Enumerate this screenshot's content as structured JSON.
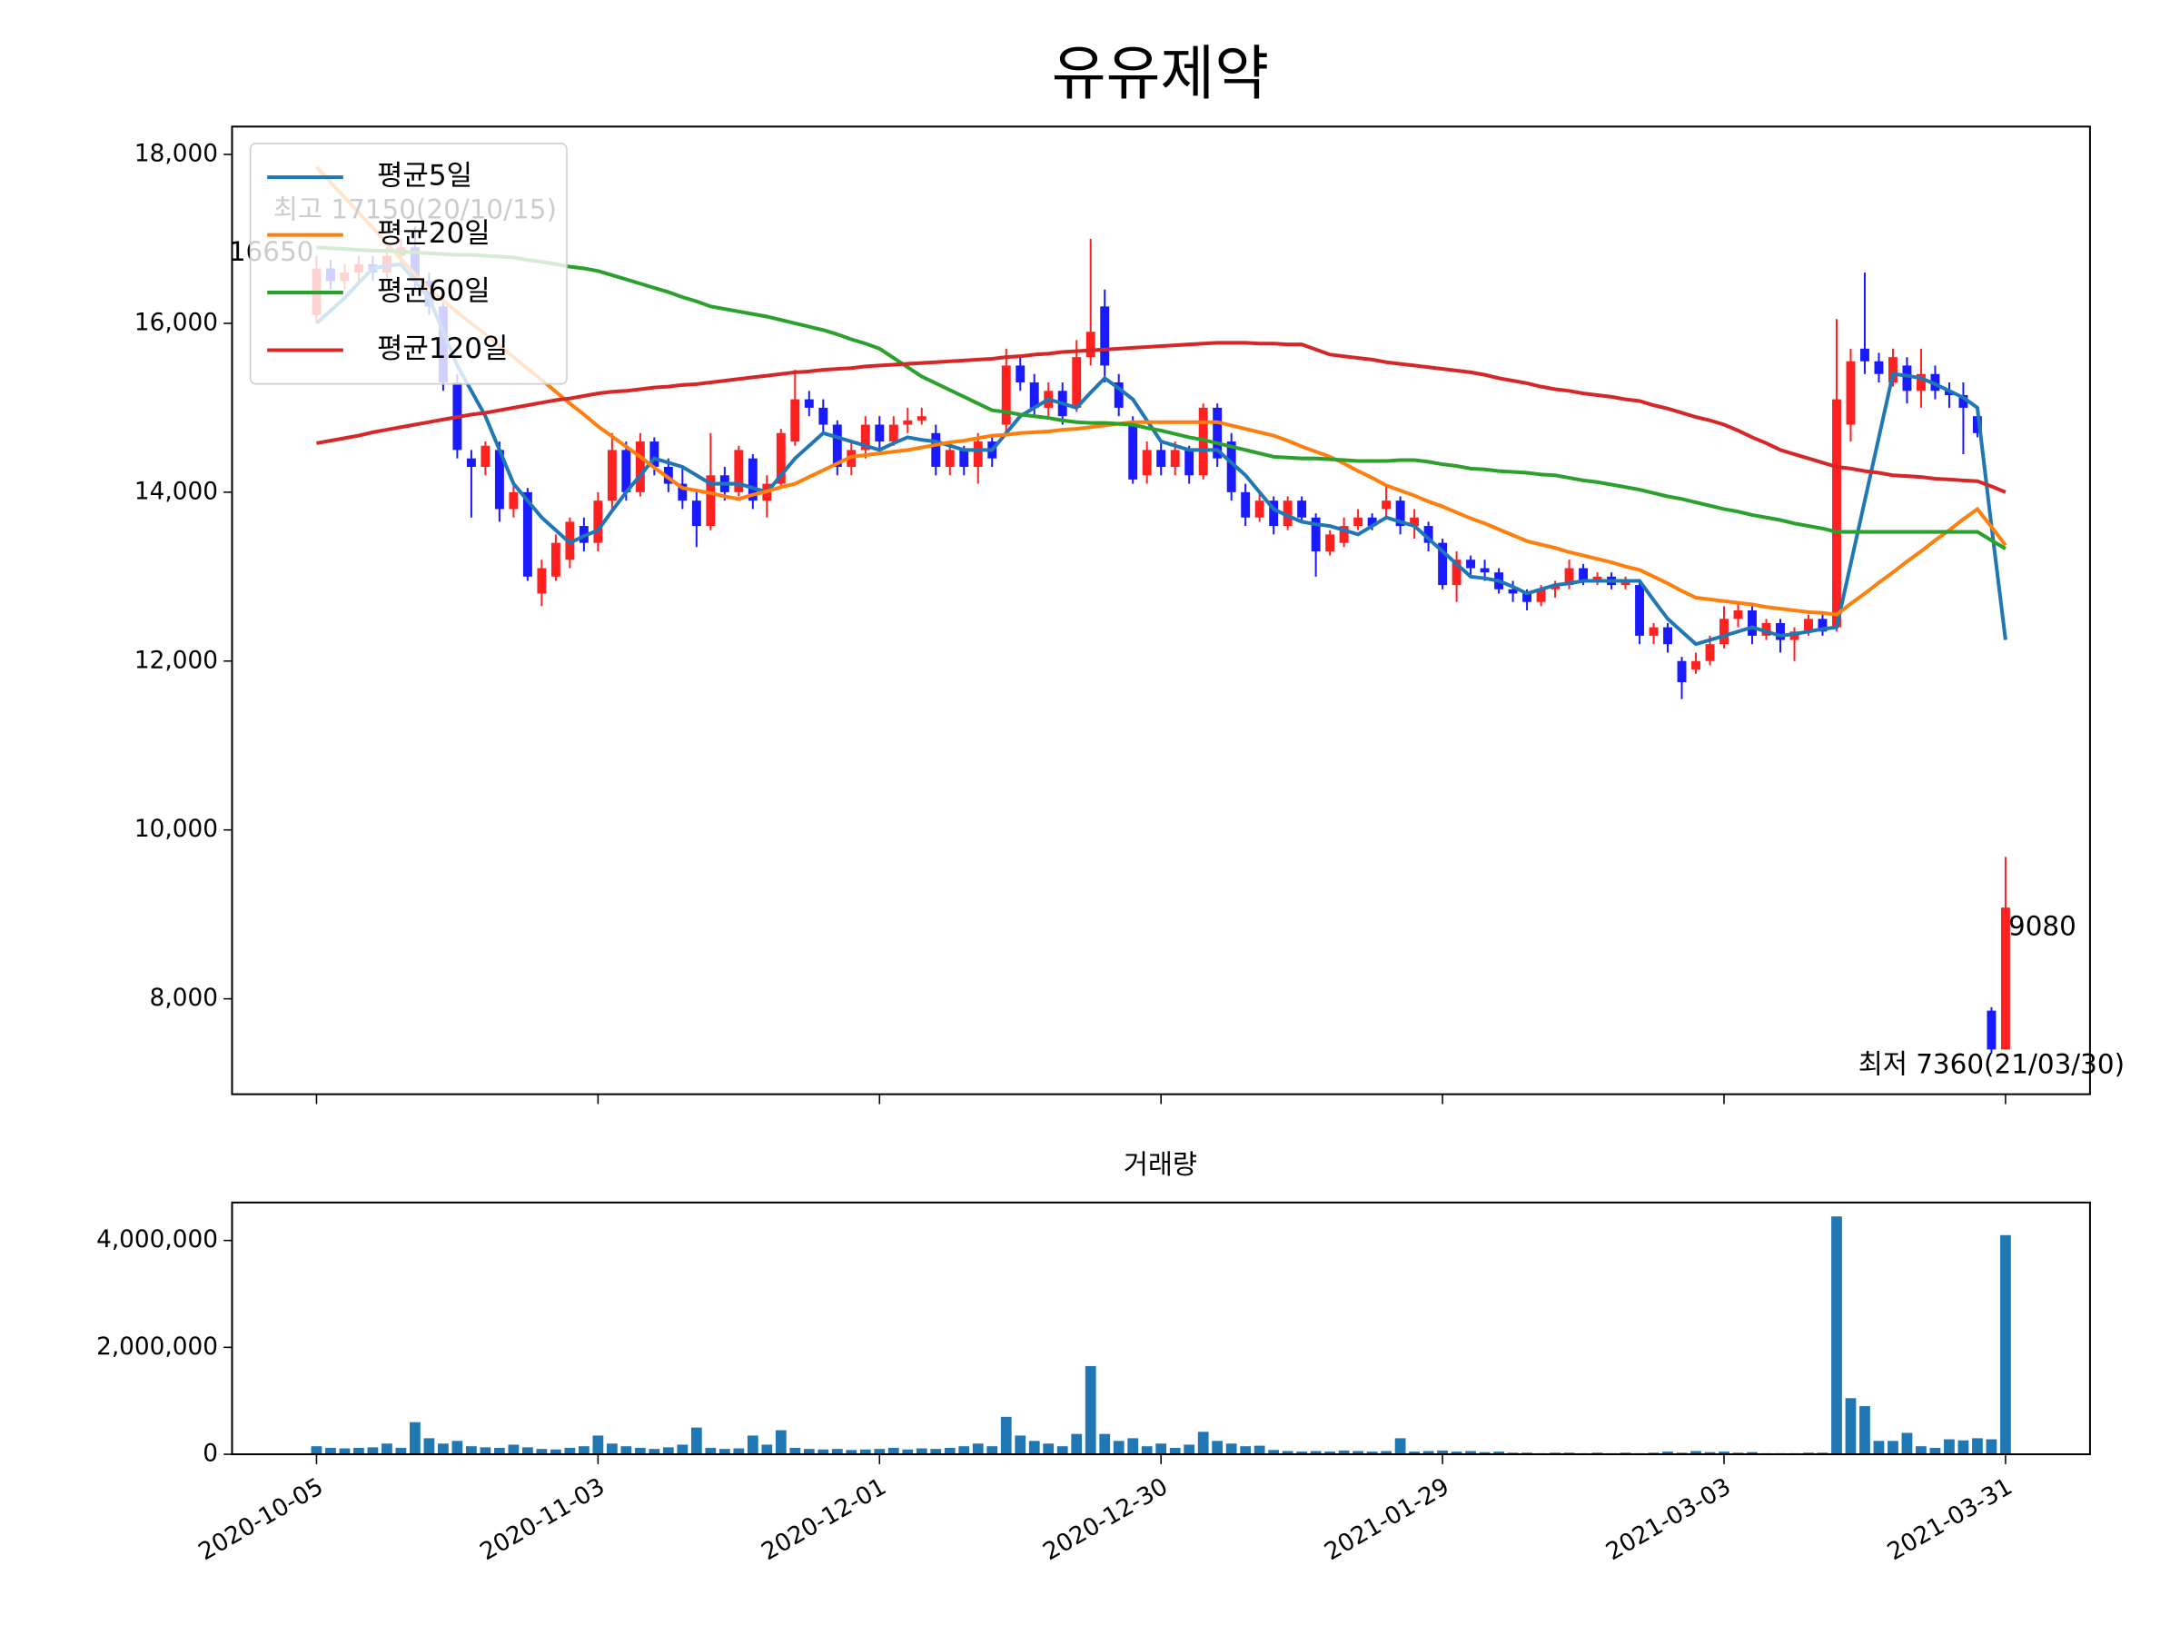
{
  "chart_data": {
    "type": "candlestick",
    "title": "유유제약",
    "categories": [
      "2020-10-05",
      null,
      null,
      null,
      null,
      null,
      null,
      null,
      null,
      null,
      null,
      null,
      null,
      null,
      null,
      null,
      null,
      null,
      null,
      null,
      "2020-11-03",
      null,
      null,
      null,
      null,
      null,
      null,
      null,
      null,
      null,
      null,
      null,
      null,
      null,
      null,
      null,
      null,
      null,
      null,
      null,
      "2020-12-01",
      null,
      null,
      null,
      null,
      null,
      null,
      null,
      null,
      null,
      null,
      null,
      null,
      null,
      null,
      null,
      null,
      null,
      null,
      null,
      "2020-12-30",
      null,
      null,
      null,
      null,
      null,
      null,
      null,
      null,
      null,
      null,
      null,
      null,
      null,
      null,
      null,
      null,
      null,
      null,
      null,
      "2021-01-29",
      null,
      null,
      null,
      null,
      null,
      null,
      null,
      null,
      null,
      null,
      null,
      null,
      null,
      null,
      null,
      null,
      null,
      null,
      null,
      "2021-03-03",
      null,
      null,
      null,
      null,
      null,
      null,
      null,
      null,
      null,
      null,
      null,
      null,
      null,
      null,
      null,
      null,
      null,
      null,
      null,
      "2021-03-31"
    ],
    "open": [
      16100,
      16650,
      16500,
      16600,
      16700,
      16600,
      16800,
      16900,
      16500,
      16200,
      15300,
      14400,
      14300,
      14500,
      13800,
      14000,
      12800,
      13000,
      13200,
      13600,
      13400,
      13900,
      14500,
      14000,
      14600,
      14300,
      14100,
      13900,
      13600,
      14200,
      14000,
      14400,
      13900,
      14100,
      14600,
      15100,
      15000,
      14800,
      14300,
      14500,
      14800,
      14600,
      14800,
      14850,
      14700,
      14300,
      14500,
      14300,
      14600,
      14800,
      15500,
      15300,
      15000,
      15200,
      15000,
      15600,
      16200,
      15300,
      14800,
      14200,
      14500,
      14300,
      14500,
      14200,
      15000,
      14600,
      14000,
      13700,
      13900,
      13600,
      13900,
      13700,
      13300,
      13400,
      13600,
      13700,
      13800,
      13900,
      13600,
      13600,
      13400,
      12900,
      13200,
      13100,
      13050,
      12850,
      12800,
      12700,
      12850,
      12900,
      13100,
      12950,
      13000,
      12900,
      12900,
      12300,
      12400,
      12000,
      11900,
      12000,
      12200,
      12500,
      12600,
      12300,
      12450,
      12250,
      12350,
      12500,
      12400,
      14800,
      15700,
      15550,
      15300,
      15500,
      15200,
      15400,
      15200,
      15150,
      14900,
      7860,
      7400
    ],
    "high": [
      16800,
      16750,
      16700,
      16800,
      16800,
      16900,
      17000,
      17150,
      16600,
      16300,
      15400,
      14500,
      14600,
      14600,
      14100,
      14050,
      13200,
      13500,
      13700,
      13700,
      14000,
      14700,
      14600,
      14700,
      14650,
      14400,
      14300,
      14000,
      14700,
      14300,
      14550,
      14450,
      14200,
      14750,
      15450,
      15200,
      15100,
      14850,
      14600,
      14900,
      14900,
      14900,
      15000,
      15000,
      14800,
      14600,
      14550,
      14700,
      14650,
      15700,
      15600,
      15400,
      15300,
      15300,
      15800,
      17000,
      16400,
      15400,
      14900,
      14600,
      14600,
      14600,
      14550,
      15050,
      15050,
      14700,
      14100,
      14000,
      13950,
      13950,
      13950,
      13750,
      13550,
      13700,
      13800,
      13750,
      14100,
      13950,
      13800,
      13650,
      13450,
      13300,
      13250,
      13200,
      13100,
      12950,
      12850,
      12900,
      12950,
      13200,
      13150,
      13050,
      13050,
      13000,
      12950,
      12450,
      12450,
      12050,
      12100,
      12300,
      12650,
      12700,
      12650,
      12500,
      12500,
      12400,
      12550,
      12550,
      16050,
      15700,
      16600,
      15650,
      15700,
      15600,
      15700,
      15500,
      15300,
      15300,
      14950,
      7900,
      9680
    ],
    "low": [
      16000,
      16400,
      16400,
      16500,
      16500,
      16500,
      16700,
      16400,
      16100,
      15200,
      14400,
      13700,
      14200,
      13650,
      13700,
      12950,
      12650,
      12950,
      13100,
      13300,
      13300,
      13800,
      13900,
      13950,
      14200,
      14000,
      13800,
      13350,
      13550,
      13900,
      13950,
      13800,
      13700,
      14050,
      14550,
      14900,
      14700,
      14200,
      14200,
      14400,
      14500,
      14550,
      14700,
      14800,
      14200,
      14200,
      14200,
      14100,
      14300,
      14700,
      15200,
      14900,
      14900,
      14800,
      14950,
      15500,
      15300,
      14900,
      14100,
      14100,
      14200,
      14200,
      14100,
      14150,
      14300,
      13900,
      13600,
      13650,
      13500,
      13550,
      13650,
      13000,
      13250,
      13350,
      13550,
      13550,
      13700,
      13500,
      13450,
      13300,
      12850,
      12700,
      13000,
      12950,
      12800,
      12700,
      12600,
      12650,
      12750,
      12850,
      12900,
      12900,
      12850,
      12850,
      12200,
      12200,
      12100,
      11550,
      11850,
      11950,
      12150,
      12400,
      12200,
      12250,
      12100,
      12000,
      12300,
      12300,
      12350,
      14600,
      15400,
      15300,
      15250,
      15050,
      15000,
      15100,
      15000,
      14450,
      14650,
      7360,
      7400
    ],
    "close": [
      16650,
      16500,
      16600,
      16700,
      16600,
      16800,
      16900,
      16500,
      16200,
      15300,
      14500,
      14300,
      14550,
      13800,
      14000,
      13000,
      13100,
      13400,
      13650,
      13400,
      13900,
      14500,
      14000,
      14600,
      14300,
      14100,
      13900,
      13600,
      14200,
      14000,
      14500,
      13900,
      14100,
      14700,
      15100,
      15000,
      14800,
      14300,
      14500,
      14800,
      14600,
      14800,
      14850,
      14900,
      14300,
      14500,
      14300,
      14600,
      14400,
      15500,
      15300,
      15000,
      15200,
      14900,
      15600,
      15900,
      15500,
      15000,
      14150,
      14500,
      14300,
      14500,
      14200,
      15000,
      14400,
      14000,
      13700,
      13900,
      13600,
      13900,
      13700,
      13300,
      13500,
      13600,
      13700,
      13600,
      13900,
      13600,
      13700,
      13400,
      12900,
      13200,
      13100,
      13050,
      12850,
      12800,
      12700,
      12850,
      12900,
      13100,
      12950,
      13000,
      12900,
      12950,
      12300,
      12400,
      12200,
      11750,
      12000,
      12200,
      12500,
      12600,
      12300,
      12450,
      12250,
      12350,
      12500,
      12350,
      15100,
      15550,
      15550,
      15400,
      15600,
      15200,
      15400,
      15200,
      15150,
      15000,
      14700,
      7400,
      9080
    ],
    "up_color": "#ff2020",
    "down_color": "#1a1aff",
    "ylim": [
      6870,
      18330
    ],
    "yticks": [
      {
        "value": 8000,
        "label": "8,000"
      },
      {
        "value": 10000,
        "label": "10,000"
      },
      {
        "value": 12000,
        "label": "12,000"
      },
      {
        "value": 14000,
        "label": "14,000"
      },
      {
        "value": 16000,
        "label": "16,000"
      },
      {
        "value": 18000,
        "label": "18,000"
      }
    ],
    "legend": "upper left",
    "series": [
      {
        "name": "평균5일",
        "color": "#1f77b4",
        "values": [
          16000,
          16150,
          16300,
          16480,
          16650,
          16680,
          16700,
          16500,
          16300,
          15900,
          15500,
          15200,
          14900,
          14500,
          14100,
          13900,
          13700,
          13550,
          13400,
          13480,
          13550,
          13780,
          14000,
          14200,
          14400,
          14350,
          14300,
          14200,
          14100,
          14100,
          14100,
          14050,
          14000,
          14200,
          14400,
          14550,
          14700,
          14650,
          14600,
          14550,
          14500,
          14580,
          14650,
          14620,
          14600,
          14550,
          14500,
          14500,
          14500,
          14700,
          14900,
          15000,
          15100,
          15050,
          15000,
          15180,
          15350,
          15230,
          15100,
          14850,
          14600,
          14550,
          14500,
          14500,
          14500,
          14350,
          14200,
          14000,
          13800,
          13720,
          13650,
          13620,
          13600,
          13550,
          13500,
          13600,
          13700,
          13650,
          13600,
          13450,
          13300,
          13150,
          13000,
          12980,
          12950,
          12880,
          12800,
          12850,
          12900,
          12920,
          12950,
          12950,
          12950,
          12950,
          12950,
          12720,
          12500,
          12350,
          12200,
          12250,
          12300,
          12350,
          12400,
          12350,
          12300,
          12320,
          12350,
          12380,
          12400,
          13150,
          13900,
          14650,
          15400,
          15380,
          15350,
          15280,
          15200,
          15120,
          15000,
          13600,
          12250
        ]
      },
      {
        "name": "평균20일",
        "color": "#ff7f0e",
        "values": [
          17850,
          17670,
          17490,
          17310,
          17130,
          16940,
          16760,
          16580,
          16400,
          16270,
          16130,
          16000,
          15870,
          15730,
          15600,
          15460,
          15330,
          15190,
          15050,
          14920,
          14780,
          14660,
          14540,
          14420,
          14290,
          14170,
          14050,
          14020,
          13990,
          13950,
          13920,
          13970,
          14010,
          14060,
          14100,
          14180,
          14260,
          14340,
          14420,
          14440,
          14460,
          14480,
          14500,
          14530,
          14560,
          14590,
          14610,
          14640,
          14670,
          14680,
          14700,
          14710,
          14720,
          14740,
          14750,
          14770,
          14790,
          14810,
          14830,
          14830,
          14830,
          14830,
          14830,
          14830,
          14830,
          14790,
          14750,
          14710,
          14670,
          14610,
          14540,
          14480,
          14420,
          14340,
          14250,
          14170,
          14080,
          14020,
          13960,
          13890,
          13830,
          13760,
          13690,
          13630,
          13560,
          13490,
          13420,
          13380,
          13340,
          13290,
          13250,
          13210,
          13170,
          13120,
          13080,
          13000,
          12920,
          12830,
          12750,
          12730,
          12710,
          12690,
          12670,
          12640,
          12620,
          12600,
          12580,
          12570,
          12550,
          12680,
          12800,
          12930,
          13050,
          13180,
          13300,
          13430,
          13550,
          13680,
          13800,
          13590,
          13370
        ]
      },
      {
        "name": "평균60일",
        "color": "#2ca02c",
        "values": [
          16900,
          16890,
          16880,
          16870,
          16860,
          16860,
          16850,
          16840,
          16830,
          16820,
          16810,
          16810,
          16800,
          16790,
          16780,
          16750,
          16730,
          16700,
          16670,
          16650,
          16620,
          16570,
          16520,
          16470,
          16420,
          16370,
          16310,
          16260,
          16200,
          16170,
          16140,
          16110,
          16080,
          16040,
          16000,
          15960,
          15920,
          15870,
          15810,
          15760,
          15700,
          15590,
          15480,
          15370,
          15290,
          15210,
          15130,
          15050,
          14970,
          14950,
          14920,
          14900,
          14880,
          14850,
          14830,
          14820,
          14820,
          14810,
          14800,
          14760,
          14730,
          14690,
          14650,
          14620,
          14580,
          14540,
          14500,
          14460,
          14420,
          14410,
          14400,
          14400,
          14390,
          14380,
          14370,
          14370,
          14370,
          14380,
          14380,
          14360,
          14330,
          14310,
          14280,
          14270,
          14250,
          14240,
          14230,
          14210,
          14200,
          14170,
          14140,
          14120,
          14090,
          14060,
          14030,
          13990,
          13950,
          13920,
          13880,
          13840,
          13800,
          13770,
          13730,
          13700,
          13670,
          13630,
          13600,
          13570,
          13530,
          13530,
          13530,
          13530,
          13530,
          13530,
          13530,
          13530,
          13530,
          13530,
          13530,
          13430,
          13330
        ]
      },
      {
        "name": "평균120일",
        "color": "#d62728",
        "values": [
          14580,
          14610,
          14640,
          14670,
          14710,
          14740,
          14770,
          14800,
          14830,
          14860,
          14890,
          14920,
          14940,
          14970,
          15000,
          15030,
          15060,
          15090,
          15110,
          15140,
          15170,
          15190,
          15200,
          15220,
          15240,
          15250,
          15270,
          15280,
          15300,
          15320,
          15340,
          15360,
          15380,
          15400,
          15420,
          15430,
          15450,
          15460,
          15470,
          15490,
          15500,
          15510,
          15520,
          15530,
          15540,
          15550,
          15560,
          15570,
          15580,
          15600,
          15610,
          15630,
          15640,
          15660,
          15670,
          15680,
          15690,
          15700,
          15710,
          15720,
          15730,
          15740,
          15750,
          15760,
          15770,
          15770,
          15770,
          15760,
          15760,
          15750,
          15750,
          15690,
          15630,
          15610,
          15590,
          15570,
          15540,
          15520,
          15500,
          15480,
          15460,
          15440,
          15420,
          15390,
          15350,
          15320,
          15290,
          15250,
          15220,
          15200,
          15170,
          15150,
          15130,
          15100,
          15080,
          15030,
          14990,
          14940,
          14890,
          14850,
          14800,
          14730,
          14650,
          14580,
          14500,
          14450,
          14400,
          14350,
          14300,
          14280,
          14250,
          14230,
          14200,
          14190,
          14180,
          14160,
          14150,
          14140,
          14130,
          14070,
          14000
        ]
      }
    ],
    "annotations": [
      {
        "text": "최고 17150(20/10/15)",
        "value": 17150,
        "color": "red"
      },
      {
        "value": 16650,
        "color": "black"
      },
      {
        "value": 9080,
        "color": "black"
      },
      {
        "text": "최저 7360(21/03/30)",
        "value": 7360,
        "color": "blue"
      }
    ],
    "volume": {
      "title": "거래량",
      "color": "#1f77b4",
      "values": [
        150000,
        120000,
        110000,
        120000,
        130000,
        200000,
        120000,
        600000,
        300000,
        200000,
        250000,
        150000,
        130000,
        120000,
        180000,
        130000,
        100000,
        90000,
        120000,
        150000,
        350000,
        200000,
        150000,
        120000,
        100000,
        130000,
        180000,
        500000,
        120000,
        100000,
        110000,
        350000,
        180000,
        450000,
        120000,
        100000,
        90000,
        100000,
        80000,
        90000,
        100000,
        120000,
        90000,
        110000,
        100000,
        120000,
        150000,
        200000,
        150000,
        700000,
        350000,
        250000,
        200000,
        150000,
        380000,
        1650000,
        380000,
        250000,
        300000,
        150000,
        200000,
        120000,
        180000,
        420000,
        250000,
        200000,
        150000,
        160000,
        80000,
        60000,
        50000,
        60000,
        50000,
        70000,
        60000,
        50000,
        60000,
        300000,
        50000,
        60000,
        70000,
        50000,
        60000,
        40000,
        50000,
        30000,
        30000,
        20000,
        30000,
        30000,
        20000,
        30000,
        20000,
        30000,
        20000,
        30000,
        50000,
        30000,
        60000,
        40000,
        50000,
        30000,
        40000,
        20000,
        20000,
        20000,
        30000,
        30000,
        4450000,
        1050000,
        900000,
        250000,
        250000,
        400000,
        150000,
        120000,
        280000,
        260000,
        300000,
        280000,
        4100000
      ],
      "ylim": [
        0,
        4710000
      ],
      "yticks": [
        0,
        {
          "value": 2000000,
          "label": "2,000,000"
        },
        {
          "value": 4000000,
          "label": "4,000,000"
        }
      ]
    }
  }
}
